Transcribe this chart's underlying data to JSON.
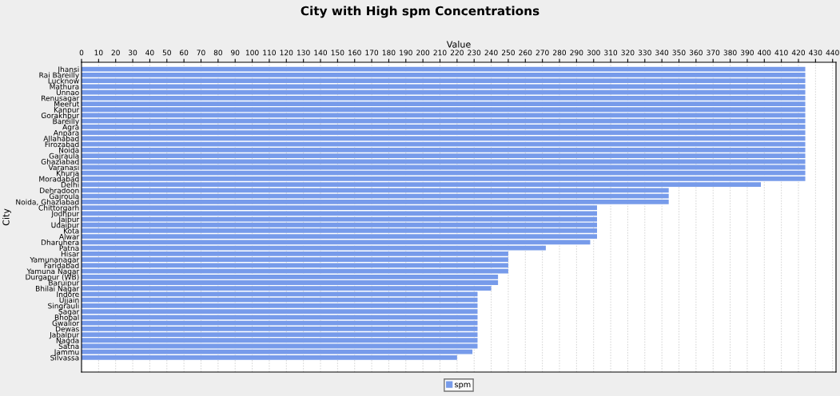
{
  "chart_data": {
    "type": "bar",
    "orientation": "horizontal",
    "title": "City with High spm Concentrations",
    "xlabel": "Value",
    "ylabel": "City",
    "categories": [
      "Jhansi",
      "Rai Bareilly",
      "Lucknow",
      "Mathura",
      "Unnao",
      "Renusagar",
      "Meerut",
      "Kanpur",
      "Gorakhpur",
      "Bareilly",
      "Agra",
      "Anpara",
      "Allahabad",
      "Firozabad",
      "Noida",
      "Gajraula",
      "Ghaziabad",
      "Varanasi",
      "Khurja",
      "Moradabad",
      "Delhi",
      "Dehradoon",
      "Gajroula",
      "Noida, Ghaziabad",
      "Chittorgarh",
      "Jodhpur",
      "Jaipur",
      "Udaipur",
      "Kota",
      "Alwar",
      "Dharuhera",
      "Patna",
      "Hisar",
      "Yamunanagar",
      "Faridabad",
      "Yamuna Nagar",
      "Durgapur (WB)",
      "Baruipur",
      "Bhilai Nagar",
      "Indore",
      "Ujjain",
      "Singrauli",
      "Sagar",
      "Bhopal",
      "Gwalior",
      "Dewas",
      "Jabalpur",
      "Nagda",
      "Satna",
      "Jammu",
      "Silvassa"
    ],
    "series": [
      {
        "name": "spm",
        "color": "#779bea",
        "values": [
          424,
          424,
          424,
          424,
          424,
          424,
          424,
          424,
          424,
          424,
          424,
          424,
          424,
          424,
          424,
          424,
          424,
          424,
          424,
          424,
          398,
          344,
          344,
          344,
          302,
          302,
          302,
          302,
          302,
          302,
          298,
          272,
          250,
          250,
          250,
          250,
          244,
          244,
          240,
          232,
          232,
          232,
          232,
          232,
          232,
          232,
          232,
          232,
          232,
          229,
          220
        ]
      }
    ],
    "xlim": [
      0,
      442
    ],
    "xticks": [
      0,
      10,
      20,
      30,
      40,
      50,
      60,
      70,
      80,
      90,
      100,
      110,
      120,
      130,
      140,
      150,
      160,
      170,
      180,
      190,
      200,
      210,
      220,
      230,
      240,
      250,
      260,
      270,
      280,
      290,
      300,
      310,
      320,
      330,
      340,
      350,
      360,
      370,
      380,
      390,
      400,
      410,
      420,
      430,
      440
    ],
    "grid": "x",
    "legend": "bottom"
  }
}
